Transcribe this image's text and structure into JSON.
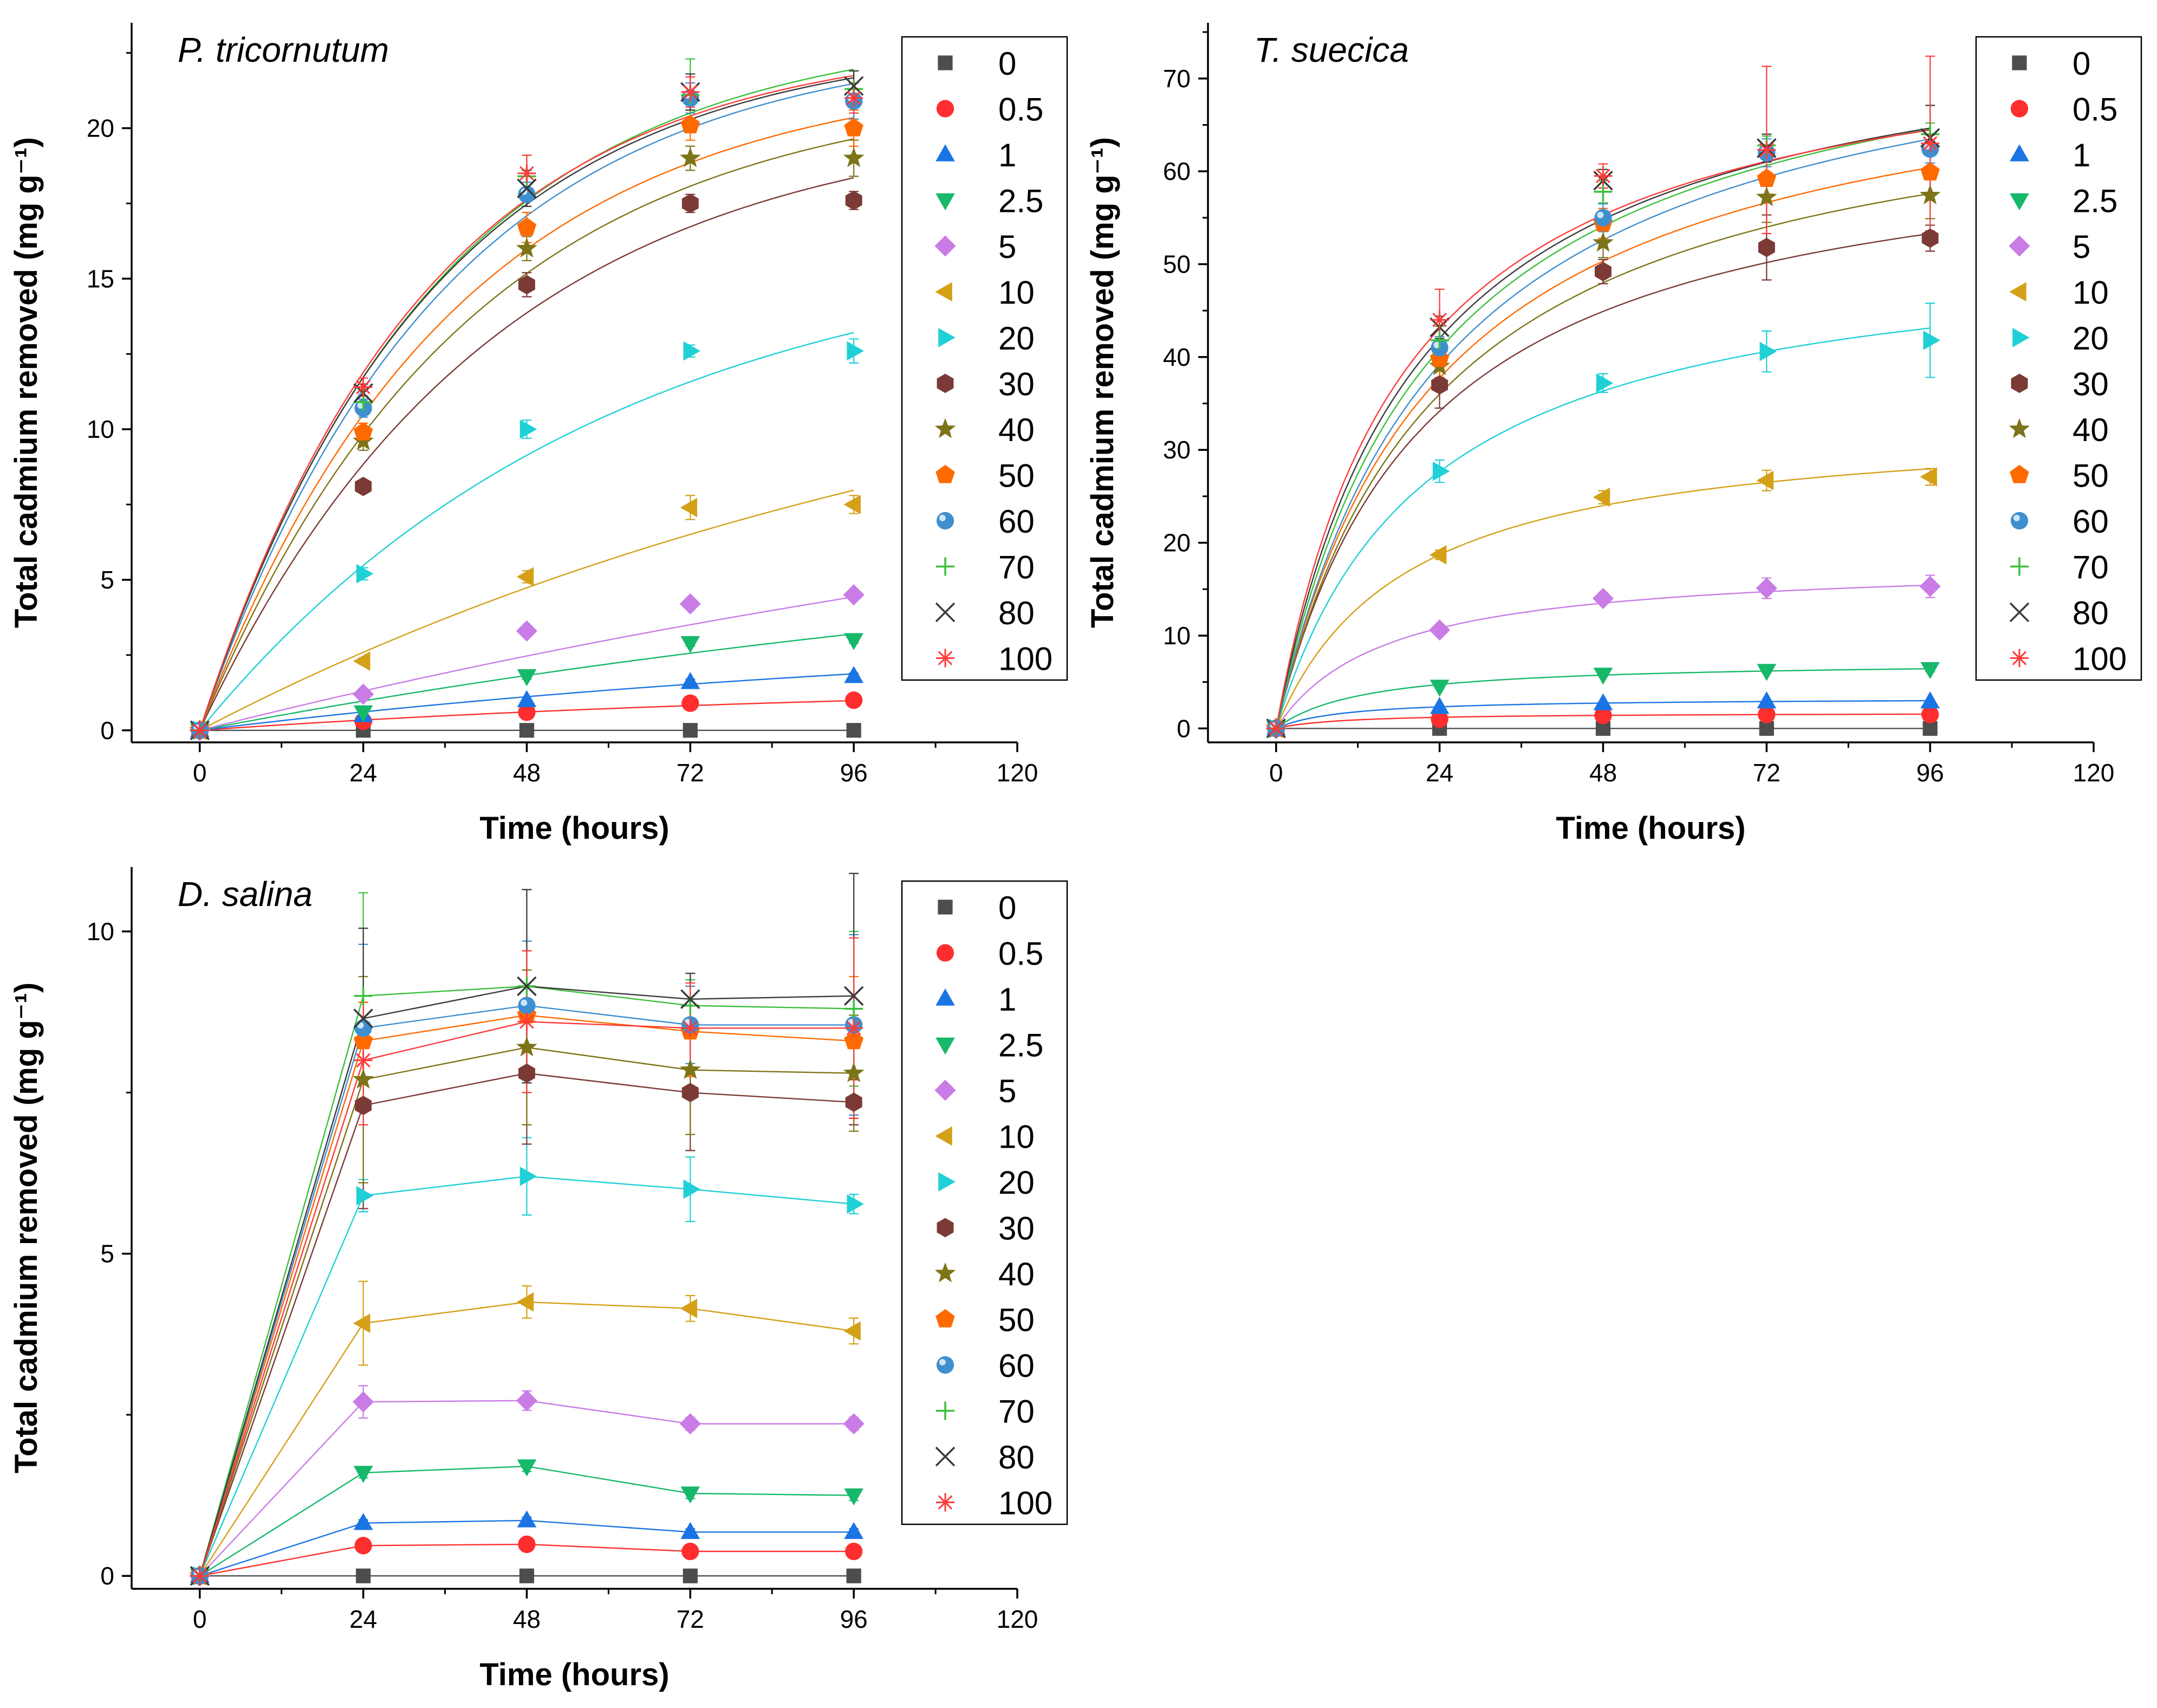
{
  "colors": {
    "0": "#4d4d4d",
    "0.5": "#ff2e2e",
    "1": "#1b74e4",
    "2.5": "#16b86a",
    "5": "#c97ce6",
    "10": "#d4a017",
    "20": "#1fd0d6",
    "30": "#7b3a36",
    "40": "#7d7418",
    "50": "#ff6a00",
    "60": "#3f8fcf",
    "70": "#3bbf3b",
    "80": "#3a3a3a",
    "100": "#ff3a3a"
  },
  "chart_data": [
    {
      "type": "scatter",
      "title": "P. tricornutum",
      "xlabel": "Time (hours)",
      "ylabel": "Total cadmium removed (mg g⁻¹)",
      "xlim": [
        -10,
        120
      ],
      "ylim": [
        -0.4,
        23.5
      ],
      "xticks": [
        0,
        24,
        48,
        72,
        96,
        120
      ],
      "yticks": [
        0,
        5,
        10,
        15,
        20
      ],
      "x": [
        0,
        24,
        48,
        72,
        96
      ],
      "fit": "exponential",
      "legend_title": "",
      "series": [
        {
          "name": "0",
          "marker": "square",
          "values": [
            0,
            0,
            0,
            0,
            0
          ],
          "errors": [
            0,
            0,
            0,
            0,
            0
          ],
          "fit": [
            0,
            0
          ]
        },
        {
          "name": "0.5",
          "marker": "circle",
          "values": [
            0,
            0.3,
            0.6,
            0.9,
            1.0
          ],
          "errors": [
            0,
            0.05,
            0.05,
            0.05,
            0.05
          ],
          "fit": [
            1.6,
            0.01
          ]
        },
        {
          "name": "1",
          "marker": "triangle-up",
          "values": [
            0,
            0.5,
            1.0,
            1.6,
            1.8
          ],
          "errors": [
            0,
            0.05,
            0.05,
            0.1,
            0.1
          ],
          "fit": [
            3.5,
            0.008
          ]
        },
        {
          "name": "2.5",
          "marker": "triangle-down",
          "values": [
            0,
            0.6,
            1.8,
            2.9,
            3.0
          ],
          "errors": [
            0,
            0.1,
            0.1,
            0.1,
            0.1
          ],
          "fit": [
            7.5,
            0.0058
          ]
        },
        {
          "name": "5",
          "marker": "diamond",
          "values": [
            0,
            1.2,
            3.3,
            4.2,
            4.5
          ],
          "errors": [
            0,
            0.1,
            0.1,
            0.15,
            0.15
          ],
          "fit": [
            12.0,
            0.0048
          ]
        },
        {
          "name": "10",
          "marker": "triangle-left",
          "values": [
            0,
            2.3,
            5.1,
            7.4,
            7.5
          ],
          "errors": [
            0,
            0.1,
            0.2,
            0.4,
            0.3
          ],
          "fit": [
            15.0,
            0.0079
          ]
        },
        {
          "name": "20",
          "marker": "triangle-right",
          "values": [
            0,
            5.2,
            10.0,
            12.6,
            12.6
          ],
          "errors": [
            0,
            0.2,
            0.3,
            0.2,
            0.4
          ],
          "fit": [
            16.5,
            0.0168
          ]
        },
        {
          "name": "30",
          "marker": "hexagon",
          "values": [
            0,
            8.1,
            14.8,
            17.5,
            17.6
          ],
          "errors": [
            0,
            0.2,
            0.4,
            0.3,
            0.3
          ],
          "fit": [
            20.5,
            0.0235
          ]
        },
        {
          "name": "40",
          "marker": "star",
          "values": [
            0,
            9.6,
            16.0,
            19.0,
            19.0
          ],
          "errors": [
            0,
            0.3,
            0.4,
            0.4,
            0.6
          ],
          "fit": [
            21.5,
            0.0255
          ]
        },
        {
          "name": "50",
          "marker": "pentagon",
          "values": [
            0,
            9.9,
            16.7,
            20.1,
            20.0
          ],
          "errors": [
            0,
            0.3,
            0.5,
            0.5,
            0.6
          ],
          "fit": [
            22.0,
            0.027
          ]
        },
        {
          "name": "60",
          "marker": "sphere",
          "values": [
            0,
            10.7,
            17.8,
            21.0,
            20.9
          ],
          "errors": [
            0,
            0.3,
            0.4,
            0.5,
            0.6
          ],
          "fit": [
            23.0,
            0.0283
          ]
        },
        {
          "name": "70",
          "marker": "plus",
          "values": [
            0,
            10.9,
            18.4,
            21.1,
            21.3
          ],
          "errors": [
            0,
            0.4,
            0.7,
            1.2,
            0.6
          ],
          "fit": [
            23.4,
            0.029
          ]
        },
        {
          "name": "80",
          "marker": "cross",
          "values": [
            0,
            11.2,
            18.0,
            21.2,
            21.4
          ],
          "errors": [
            0,
            0.3,
            0.6,
            0.6,
            0.5
          ],
          "fit": [
            23.0,
            0.0297
          ]
        },
        {
          "name": "100",
          "marker": "asterisk",
          "values": [
            0,
            11.4,
            18.5,
            21.2,
            21.0
          ],
          "errors": [
            0,
            0.3,
            0.6,
            0.5,
            0.5
          ],
          "fit": [
            23.0,
            0.0303
          ]
        }
      ]
    },
    {
      "type": "scatter",
      "title": "T. suecica",
      "xlabel": "Time (hours)",
      "ylabel": "Total cadmium removed (mg g⁻¹)",
      "xlim": [
        -10,
        120
      ],
      "ylim": [
        -1.5,
        76
      ],
      "xticks": [
        0,
        24,
        48,
        72,
        96,
        120
      ],
      "yticks": [
        0,
        10,
        20,
        30,
        40,
        50,
        60,
        70
      ],
      "x": [
        0,
        24,
        48,
        72,
        96
      ],
      "fit": "hyperbolic",
      "series": [
        {
          "name": "0",
          "marker": "square",
          "values": [
            0,
            0,
            0,
            0,
            0
          ],
          "errors": [
            0,
            0,
            0,
            0,
            0
          ],
          "fit": [
            0,
            1
          ]
        },
        {
          "name": "0.5",
          "marker": "circle",
          "values": [
            0,
            1.0,
            1.4,
            1.5,
            1.5
          ],
          "errors": [
            0,
            0.1,
            0.1,
            0.1,
            0.1
          ],
          "fit": [
            1.7,
            10
          ]
        },
        {
          "name": "1",
          "marker": "triangle-up",
          "values": [
            0,
            2.3,
            2.7,
            2.9,
            2.9
          ],
          "errors": [
            0,
            0.1,
            0.1,
            0.1,
            0.1
          ],
          "fit": [
            3.3,
            10
          ]
        },
        {
          "name": "2.5",
          "marker": "triangle-down",
          "values": [
            0,
            4.5,
            5.8,
            6.2,
            6.4
          ],
          "errors": [
            0,
            0.2,
            0.2,
            0.2,
            0.3
          ],
          "fit": [
            7.3,
            13
          ]
        },
        {
          "name": "5",
          "marker": "diamond",
          "values": [
            0,
            10.6,
            14.0,
            15.1,
            15.3
          ],
          "errors": [
            0,
            0.4,
            0.6,
            1.1,
            1.2
          ],
          "fit": [
            18.0,
            16
          ]
        },
        {
          "name": "10",
          "marker": "triangle-left",
          "values": [
            0,
            18.7,
            24.9,
            26.7,
            27.1
          ],
          "errors": [
            0,
            0.5,
            0.7,
            1.1,
            0.9
          ],
          "fit": [
            33.5,
            19
          ]
        },
        {
          "name": "20",
          "marker": "triangle-right",
          "values": [
            0,
            27.7,
            37.2,
            40.6,
            41.8
          ],
          "errors": [
            0,
            1.2,
            1.0,
            2.2,
            4.0
          ],
          "fit": [
            53.0,
            22
          ]
        },
        {
          "name": "30",
          "marker": "hexagon",
          "values": [
            0,
            37.0,
            49.2,
            51.8,
            52.8
          ],
          "errors": [
            0,
            2.5,
            1.3,
            3.5,
            1.4
          ],
          "fit": [
            65.5,
            22
          ]
        },
        {
          "name": "40",
          "marker": "star",
          "values": [
            0,
            39.0,
            52.3,
            57.2,
            57.4
          ],
          "errors": [
            0,
            2.2,
            1.6,
            2.7,
            2.5
          ],
          "fit": [
            72.0,
            24
          ]
        },
        {
          "name": "50",
          "marker": "pentagon",
          "values": [
            0,
            39.8,
            54.4,
            59.2,
            59.9
          ],
          "errors": [
            0,
            2.0,
            1.6,
            2.6,
            2.5
          ],
          "fit": [
            75.5,
            24
          ]
        },
        {
          "name": "60",
          "marker": "sphere",
          "values": [
            0,
            41.0,
            55.0,
            62.0,
            62.4
          ],
          "errors": [
            0,
            1.2,
            1.5,
            1.5,
            1.5
          ],
          "fit": [
            80.0,
            25
          ]
        },
        {
          "name": "70",
          "marker": "plus",
          "values": [
            0,
            41.8,
            57.8,
            62.8,
            64.0
          ],
          "errors": [
            0,
            1.5,
            1.2,
            1.0,
            1.2
          ],
          "fit": [
            80.0,
            23
          ]
        },
        {
          "name": "80",
          "marker": "cross",
          "values": [
            0,
            43.2,
            59.0,
            62.5,
            63.6
          ],
          "errors": [
            0,
            1.2,
            1.2,
            1.5,
            3.5
          ],
          "fit": [
            78.8,
            21
          ]
        },
        {
          "name": "100",
          "marker": "asterisk",
          "values": [
            0,
            44.0,
            59.5,
            62.3,
            63.0
          ],
          "errors": [
            0,
            3.3,
            1.3,
            9.0,
            9.4
          ],
          "fit": [
            77.2,
            19
          ]
        }
      ]
    },
    {
      "type": "line",
      "title": "D. salina",
      "xlabel": "Time (hours)",
      "ylabel": "Total cadmium removed (mg g⁻¹)",
      "xlim": [
        -10,
        120
      ],
      "ylim": [
        -0.2,
        11.0
      ],
      "xticks": [
        0,
        24,
        48,
        72,
        96,
        120
      ],
      "yticks": [
        0,
        5,
        10
      ],
      "x": [
        0,
        24,
        48,
        72,
        96
      ],
      "series": [
        {
          "name": "0",
          "marker": "square",
          "values": [
            0,
            0,
            0,
            0,
            0
          ],
          "errors": [
            0,
            0,
            0,
            0,
            0
          ]
        },
        {
          "name": "0.5",
          "marker": "circle",
          "values": [
            0,
            0.47,
            0.49,
            0.38,
            0.38
          ],
          "errors": [
            0,
            0.03,
            0.03,
            0.03,
            0.03
          ]
        },
        {
          "name": "1",
          "marker": "triangle-up",
          "values": [
            0,
            0.82,
            0.86,
            0.68,
            0.68
          ],
          "errors": [
            0,
            0.05,
            0.05,
            0.05,
            0.05
          ]
        },
        {
          "name": "2.5",
          "marker": "triangle-down",
          "values": [
            0,
            1.6,
            1.7,
            1.28,
            1.25
          ],
          "errors": [
            0,
            0.08,
            0.08,
            0.08,
            0.08
          ]
        },
        {
          "name": "5",
          "marker": "diamond",
          "values": [
            0,
            2.7,
            2.72,
            2.36,
            2.36
          ],
          "errors": [
            0,
            0.25,
            0.15,
            0.1,
            0.1
          ]
        },
        {
          "name": "10",
          "marker": "triangle-left",
          "values": [
            0,
            3.92,
            4.25,
            4.15,
            3.8
          ],
          "errors": [
            0,
            0.65,
            0.25,
            0.2,
            0.2
          ]
        },
        {
          "name": "20",
          "marker": "triangle-right",
          "values": [
            0,
            5.9,
            6.2,
            6.0,
            5.77
          ],
          "errors": [
            0,
            0.25,
            0.6,
            0.5,
            0.15
          ]
        },
        {
          "name": "30",
          "marker": "hexagon",
          "values": [
            0,
            7.3,
            7.8,
            7.5,
            7.35
          ],
          "errors": [
            0,
            1.6,
            1.1,
            0.9,
            0.35
          ]
        },
        {
          "name": "40",
          "marker": "star",
          "values": [
            0,
            7.7,
            8.2,
            7.85,
            7.8
          ],
          "errors": [
            0,
            1.6,
            1.2,
            1.0,
            0.9
          ]
        },
        {
          "name": "50",
          "marker": "pentagon",
          "values": [
            0,
            8.3,
            8.7,
            8.45,
            8.3
          ],
          "errors": [
            0,
            0.6,
            1.0,
            0.7,
            1.0
          ]
        },
        {
          "name": "60",
          "marker": "sphere",
          "values": [
            0,
            8.5,
            8.85,
            8.55,
            8.55
          ],
          "errors": [
            0,
            1.3,
            1.0,
            0.6,
            1.4
          ]
        },
        {
          "name": "70",
          "marker": "plus",
          "values": [
            0,
            9.0,
            9.15,
            8.85,
            8.8
          ],
          "errors": [
            0,
            1.6,
            1.5,
            0.4,
            1.2
          ]
        },
        {
          "name": "80",
          "marker": "cross",
          "values": [
            0,
            8.65,
            9.15,
            8.95,
            9.0
          ],
          "errors": [
            0,
            1.4,
            1.5,
            0.4,
            1.9
          ]
        },
        {
          "name": "100",
          "marker": "asterisk",
          "values": [
            0,
            8.0,
            8.6,
            8.5,
            8.5
          ],
          "errors": [
            0,
            1.0,
            1.1,
            0.7,
            1.4
          ]
        }
      ]
    }
  ]
}
